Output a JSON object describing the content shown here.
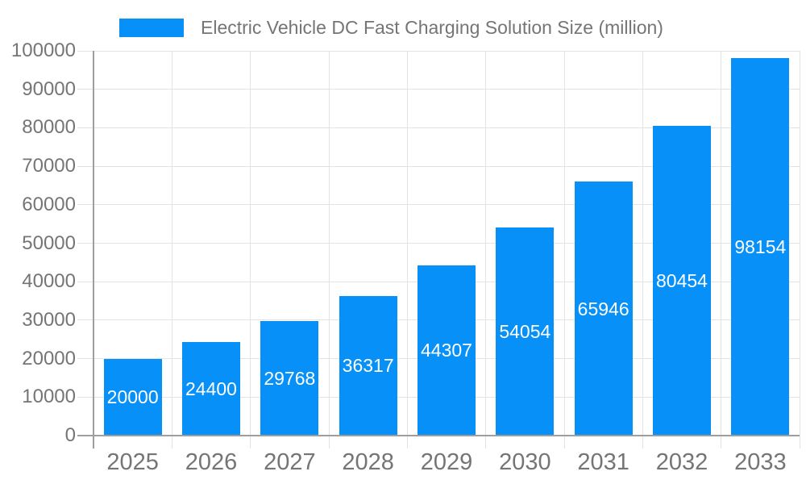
{
  "legend": {
    "label": "Electric Vehicle DC Fast Charging Solution Size (million)",
    "swatch_color": "#0690f8"
  },
  "chart_data": {
    "type": "bar",
    "title": "Electric Vehicle DC Fast Charging Solution Size (million)",
    "categories": [
      "2025",
      "2026",
      "2027",
      "2028",
      "2029",
      "2030",
      "2031",
      "2032",
      "2033"
    ],
    "values": [
      20000,
      24400,
      29768,
      36317,
      44307,
      54054,
      65946,
      80454,
      98154
    ],
    "xlabel": "",
    "ylabel": "",
    "ylim": [
      0,
      100000
    ],
    "y_tick_step": 10000,
    "y_ticks": [
      0,
      10000,
      20000,
      30000,
      40000,
      50000,
      60000,
      70000,
      80000,
      90000,
      100000
    ],
    "grid": "horizontal-and-vertical",
    "legend_position": "top",
    "colors": {
      "bar": "#0690f8",
      "value_label": "#ffffff",
      "axis_text": "#757575",
      "gridline": "#e3e3e3",
      "axis_line": "#9e9e9e",
      "background": "#ffffff"
    }
  }
}
